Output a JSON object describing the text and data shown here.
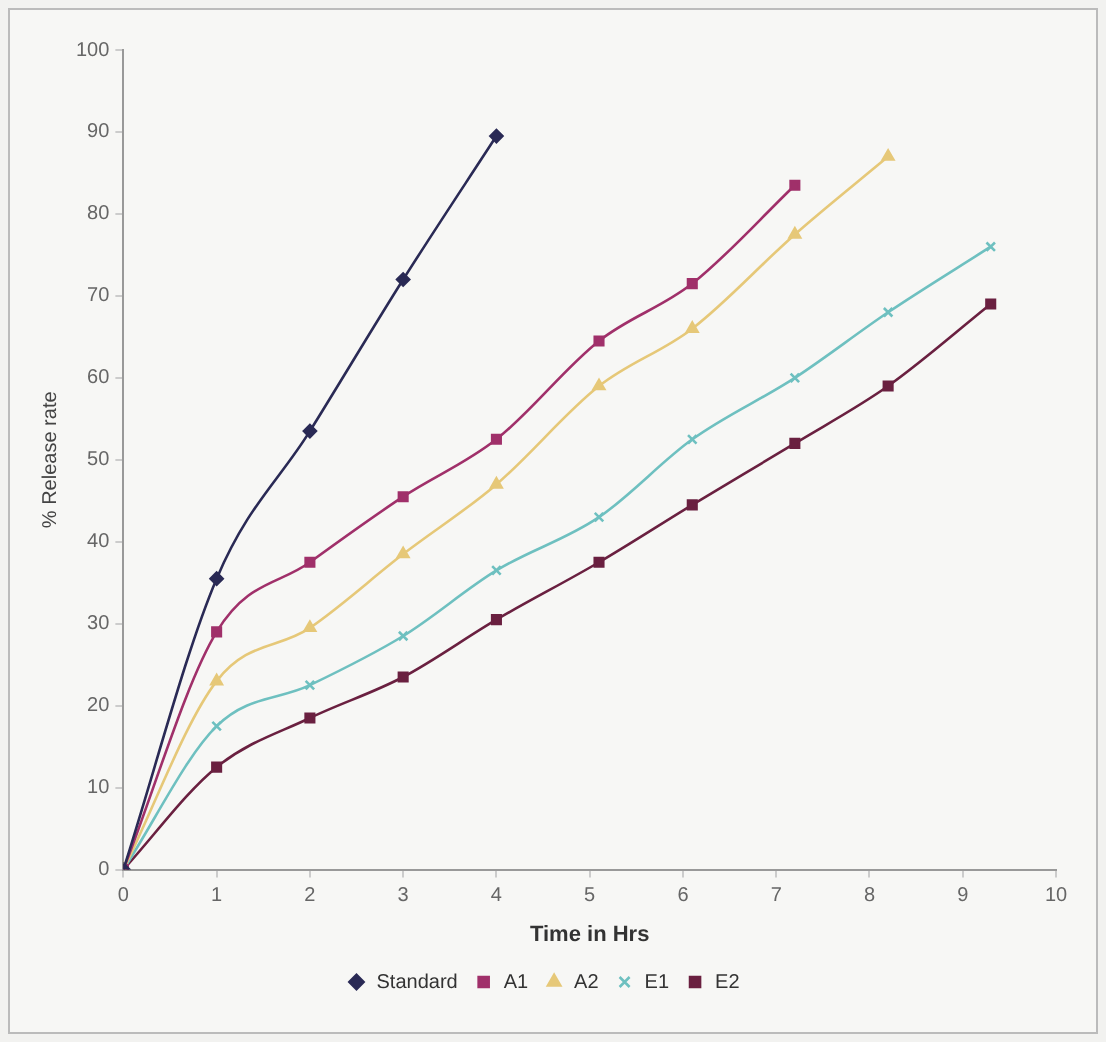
{
  "chart_data": {
    "type": "line",
    "xlabel": "Time in Hrs",
    "ylabel": "% Release rate",
    "xlim": [
      0,
      10
    ],
    "xticks": [
      0,
      1,
      2,
      3,
      4,
      5,
      6,
      7,
      8,
      9,
      10
    ],
    "ylim": [
      0,
      100
    ],
    "yticks": [
      0,
      10,
      20,
      30,
      40,
      50,
      60,
      70,
      80,
      90,
      100
    ],
    "grid": false,
    "legend": "bottom",
    "line_style": "solid",
    "series": [
      {
        "name": "Standard",
        "color": "#2a2a55",
        "marker": "diamond",
        "x": [
          0,
          1,
          2,
          3,
          4
        ],
        "values": [
          0,
          35.5,
          53.5,
          72,
          89.5
        ]
      },
      {
        "name": "A1",
        "color": "#a0306a",
        "marker": "square",
        "x": [
          0,
          1,
          2,
          3,
          4,
          5.1,
          6.1,
          7.2
        ],
        "values": [
          0,
          29,
          37.5,
          45.5,
          52.5,
          64.5,
          71.5,
          83.5
        ]
      },
      {
        "name": "A2",
        "color": "#e6c878",
        "marker": "triangle",
        "x": [
          0,
          1,
          2,
          3,
          4,
          5.1,
          6.1,
          7.2,
          8.2
        ],
        "values": [
          0,
          23,
          29.5,
          38.5,
          47,
          59,
          66,
          77.5,
          87
        ]
      },
      {
        "name": "E1",
        "color": "#6ec0c0",
        "marker": "cross",
        "x": [
          0,
          1,
          2,
          3,
          4,
          5.1,
          6.1,
          7.2,
          8.2,
          9.3
        ],
        "values": [
          0,
          17.5,
          22.5,
          28.5,
          36.5,
          43,
          52.5,
          60,
          68,
          76
        ]
      },
      {
        "name": "E2",
        "color": "#6a2040",
        "marker": "square",
        "x": [
          0,
          1,
          2,
          3,
          4,
          5.1,
          6.1,
          7.2,
          8.2,
          9.3
        ],
        "values": [
          0,
          12.5,
          18.5,
          23.5,
          30.5,
          37.5,
          44.5,
          52,
          59,
          69
        ]
      }
    ]
  }
}
